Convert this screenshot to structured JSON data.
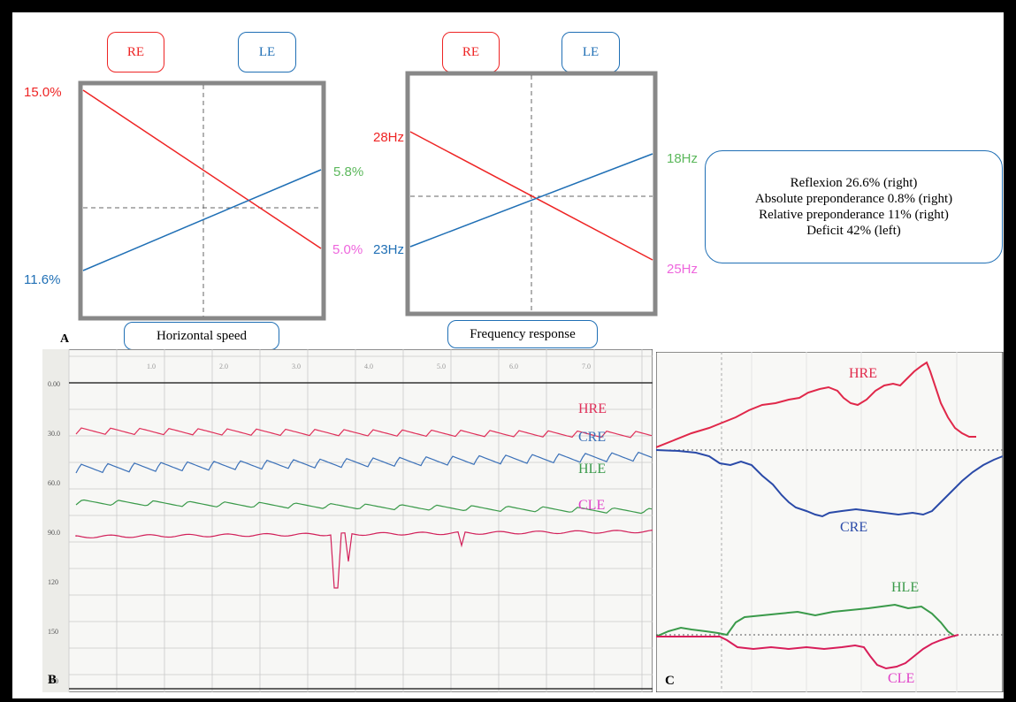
{
  "colors": {
    "red": "#ee2424",
    "blue": "#1f6fb5",
    "green": "#5cb85c",
    "magenta": "#ee66dd"
  },
  "panelA": {
    "letter": "A",
    "box1": {
      "re_label": "RE",
      "le_label": "LE",
      "caption": "Horizontal speed",
      "re_left": "15.0%",
      "re_right": "5.0%",
      "le_left": "11.6%",
      "le_right": "5.8%"
    },
    "box2": {
      "re_label": "RE",
      "le_label": "LE",
      "caption": "Frequency response",
      "re_left": "28Hz",
      "re_right": "25Hz",
      "le_left": "23Hz",
      "le_right": "18Hz"
    },
    "info_lines": [
      "Reflexion 26.6% (right)",
      "Absolute preponderance 0.8% (right)",
      "Relative preponderance 11% (right)",
      "Deficit 42% (left)"
    ]
  },
  "panelB": {
    "letter": "B",
    "y_ticks": [
      "0.00",
      "30.0",
      "60.0",
      "90.0",
      "120",
      "150",
      "180"
    ],
    "x_ticks": [
      "1.0",
      "2.0",
      "3.0",
      "4.0",
      "5.0",
      "6.0",
      "7.0"
    ],
    "traces": {
      "hre": "HRE",
      "cre": "CRE",
      "hle": "HLE",
      "cle": "CLE"
    }
  },
  "panelC": {
    "letter": "C",
    "traces": {
      "hre": "HRE",
      "cre": "CRE",
      "hle": "HLE",
      "cle": "CLE"
    }
  },
  "chart_data": [
    {
      "type": "line",
      "title": "",
      "xlabel": "",
      "ylabel": "",
      "categories": [
        "left",
        "right"
      ],
      "series": [
        {
          "name": "RE",
          "values": [
            15.0,
            5.0
          ]
        },
        {
          "name": "LE",
          "values": [
            11.6,
            5.8
          ]
        }
      ]
    },
    {
      "type": "line",
      "title": "",
      "xlabel": "",
      "ylabel": "",
      "categories": [
        "left",
        "right"
      ],
      "series": [
        {
          "name": "RE",
          "values": [
            28,
            25
          ]
        },
        {
          "name": "LE",
          "values": [
            23,
            18
          ]
        }
      ]
    }
  ]
}
